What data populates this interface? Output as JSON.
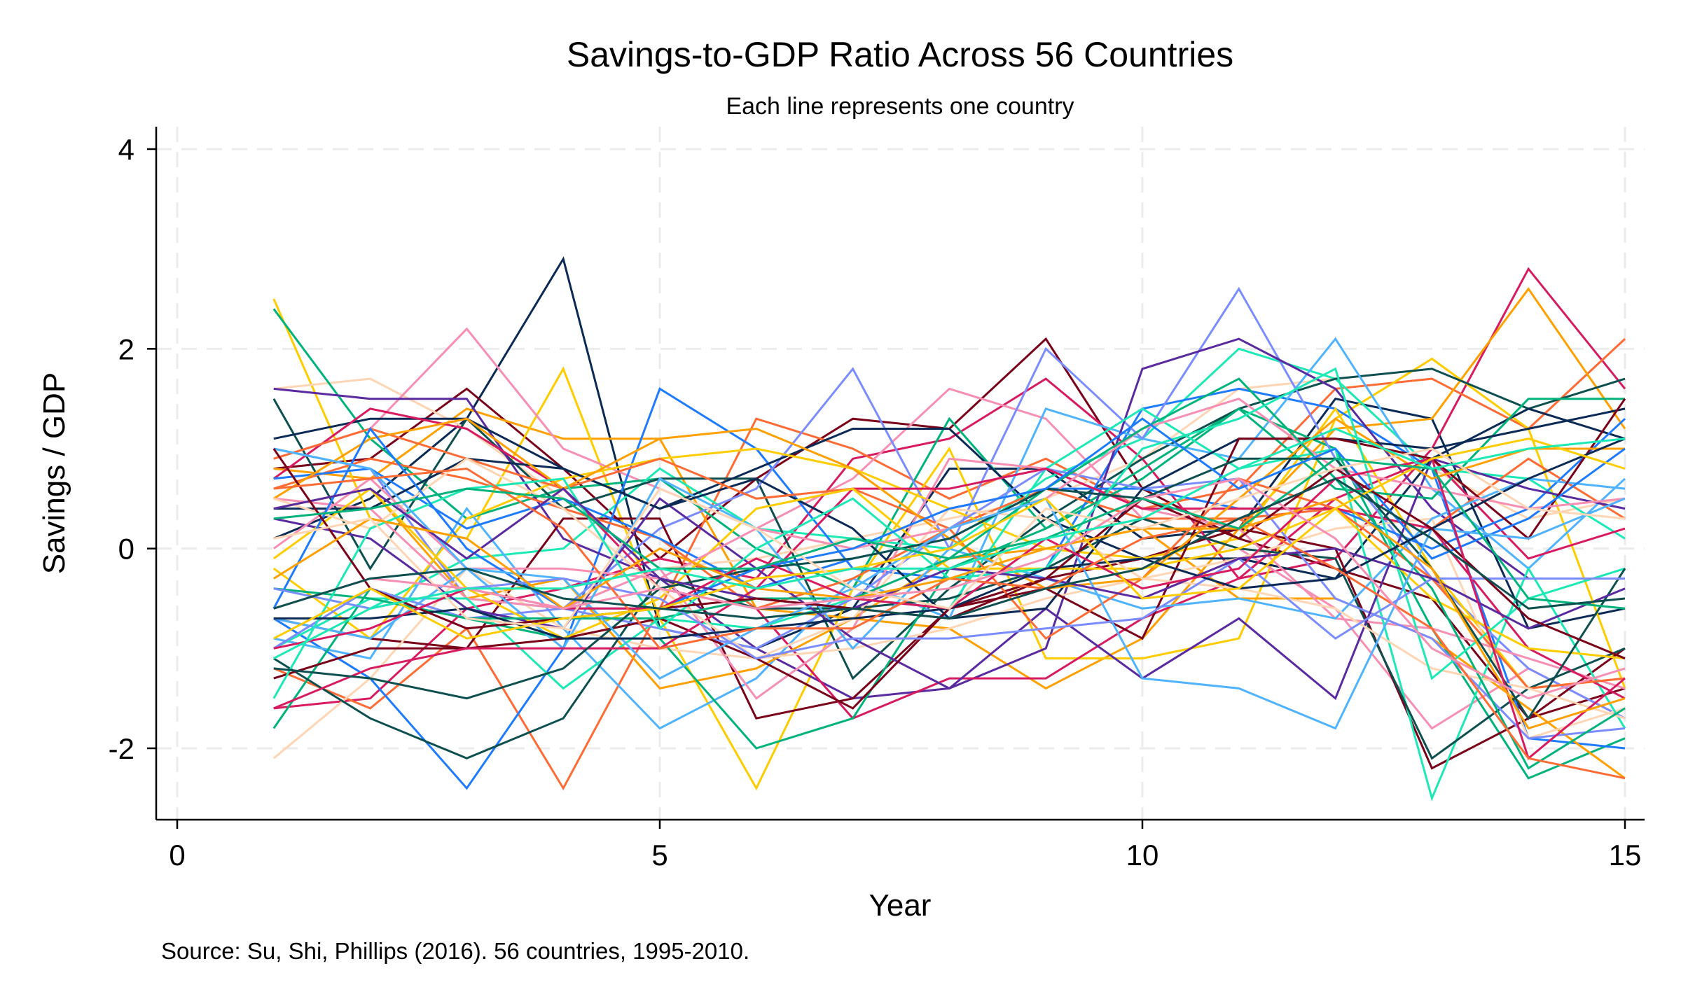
{
  "chart_data": {
    "type": "line",
    "title": "Savings-to-GDP Ratio Across 56 Countries",
    "subtitle": "Each line represents one country",
    "xlabel": "Year",
    "ylabel": "Savings / GDP",
    "note": "Source: Su, Shi, Phillips (2016). 56 countries, 1995-2010.",
    "xlim": [
      -0.2,
      15.2
    ],
    "ylim": [
      -2.7,
      4.2
    ],
    "xticks": [
      0,
      5,
      10,
      15
    ],
    "yticks": [
      -2,
      0,
      2,
      4
    ],
    "grid": true,
    "legend": "none",
    "x": [
      1,
      2,
      3,
      4,
      5,
      6,
      7,
      8,
      9,
      10,
      11,
      12,
      13,
      14,
      15
    ],
    "colors": [
      "#0b2a55",
      "#7a0019",
      "#d81b60",
      "#ff6b35",
      "#ffa000",
      "#ffcc00",
      "#ffd6b5",
      "#f78fb3",
      "#00b37a",
      "#1de9b6",
      "#0e4f4f",
      "#1e7bff",
      "#4fb3ff",
      "#7b8cff",
      "#5a2aa0"
    ],
    "series": [
      {
        "values": [
          0.1,
          0.5,
          1.3,
          2.9,
          -0.8,
          -1.0,
          -0.6,
          0.8,
          0.8,
          0.1,
          0.2,
          1.5,
          1.3,
          -0.8,
          -0.6
        ]
      },
      {
        "values": [
          0.8,
          0.9,
          1.6,
          0.8,
          -0.1,
          0.7,
          1.3,
          1.2,
          2.1,
          0.6,
          0.1,
          -0.2,
          -0.5,
          -1.7,
          -1.4
        ]
      },
      {
        "values": [
          -1.6,
          -1.5,
          -0.6,
          -0.4,
          -0.1,
          -0.3,
          0.9,
          1.1,
          1.7,
          0.9,
          -0.3,
          -0.1,
          1.0,
          2.8,
          1.6
        ]
      },
      {
        "values": [
          -1.2,
          -1.6,
          -0.8,
          -2.4,
          -0.6,
          1.3,
          1.0,
          0.5,
          0.9,
          0.4,
          0.6,
          1.6,
          1.7,
          1.2,
          2.1
        ]
      },
      {
        "values": [
          0.8,
          0.7,
          1.4,
          1.1,
          1.1,
          -0.6,
          -0.7,
          -0.8,
          -1.4,
          -0.9,
          0.2,
          1.2,
          1.3,
          2.6,
          1.2
        ]
      },
      {
        "values": [
          2.5,
          0.3,
          0.1,
          1.8,
          -0.7,
          -2.4,
          -0.4,
          1.0,
          -1.1,
          -1.1,
          -0.9,
          1.3,
          1.9,
          1.2,
          -1.4
        ]
      },
      {
        "values": [
          1.6,
          1.7,
          1.2,
          0.5,
          -0.2,
          -0.1,
          0.1,
          0.3,
          0.5,
          0.9,
          1.6,
          1.7,
          0.8,
          0.3,
          0.5
        ]
      },
      {
        "values": [
          0.9,
          1.2,
          2.2,
          1.0,
          0.6,
          0.2,
          0.7,
          1.6,
          1.3,
          0.3,
          0.0,
          -0.6,
          -1.8,
          -1.2,
          -1.7
        ]
      },
      {
        "values": [
          2.4,
          1.1,
          0.3,
          0.6,
          0.7,
          0.0,
          -0.4,
          1.3,
          0.2,
          0.8,
          1.4,
          1.0,
          -0.8,
          -2.3,
          -1.9
        ]
      },
      {
        "values": [
          -0.4,
          -0.6,
          -0.1,
          0.0,
          0.8,
          0.2,
          0.1,
          0.0,
          0.7,
          1.1,
          2.0,
          1.7,
          0.8,
          0.7,
          0.1
        ]
      },
      {
        "values": [
          1.5,
          -0.2,
          1.3,
          0.4,
          0.7,
          0.7,
          -1.3,
          -0.4,
          0.3,
          0.9,
          1.4,
          1.7,
          1.8,
          1.4,
          1.7
        ]
      },
      {
        "values": [
          -0.7,
          -1.3,
          -2.4,
          -1.0,
          1.6,
          1.0,
          -0.2,
          -0.3,
          -0.2,
          1.4,
          1.6,
          1.4,
          0.8,
          -1.9,
          -2.0
        ]
      },
      {
        "values": [
          -0.9,
          -1.1,
          0.4,
          -0.8,
          -1.8,
          -1.3,
          -0.3,
          -0.7,
          1.4,
          1.1,
          0.9,
          2.1,
          0.6,
          -0.2,
          0.7
        ]
      },
      {
        "values": [
          1.0,
          0.8,
          -0.5,
          -0.6,
          0.2,
          0.6,
          1.8,
          0.0,
          2.0,
          1.1,
          2.6,
          0.9,
          -0.3,
          -1.2,
          -1.7
        ]
      },
      {
        "values": [
          1.6,
          1.5,
          1.5,
          0.1,
          -0.3,
          -1.0,
          -1.5,
          -1.4,
          -1.0,
          1.8,
          2.1,
          1.6,
          0.4,
          -0.3,
          -0.3
        ]
      },
      {
        "values": [
          1.1,
          1.3,
          1.3,
          0.8,
          0.4,
          0.8,
          1.2,
          1.2,
          0.3,
          -0.1,
          -0.1,
          -0.3,
          0.9,
          1.4,
          1.1
        ]
      },
      {
        "values": [
          -0.7,
          -0.9,
          -1.0,
          0.3,
          0.3,
          -1.7,
          -1.5,
          -0.6,
          -0.3,
          -0.1,
          0.2,
          0.0,
          -2.2,
          -1.7,
          -1.0
        ]
      },
      {
        "values": [
          0.7,
          1.4,
          1.2,
          0.6,
          -0.4,
          -0.6,
          -1.7,
          -1.3,
          -1.3,
          -0.7,
          -0.3,
          0.5,
          0.9,
          -0.1,
          0.2
        ]
      },
      {
        "values": [
          0.6,
          0.9,
          0.7,
          0.4,
          0.1,
          -0.6,
          -0.3,
          0.2,
          0.6,
          0.3,
          0.3,
          0.4,
          0.2,
          0.9,
          0.3
        ]
      },
      {
        "values": [
          0.4,
          0.6,
          -0.5,
          -0.3,
          -1.4,
          -1.2,
          -0.7,
          -0.1,
          0.0,
          0.2,
          -0.5,
          -0.5,
          -0.9,
          -1.6,
          -2.3
        ]
      },
      {
        "values": [
          -0.2,
          -0.9,
          0.3,
          0.7,
          0.9,
          1.0,
          0.8,
          0.4,
          0.0,
          -0.1,
          0.1,
          1.4,
          -0.2,
          -1.4,
          -1.3
        ]
      },
      {
        "values": [
          -2.1,
          -1.3,
          -0.2,
          -0.8,
          -1.0,
          -1.1,
          -1.0,
          -0.8,
          -0.5,
          -0.3,
          -0.1,
          0.2,
          0.3,
          -1.9,
          -1.6
        ]
      },
      {
        "values": [
          0.5,
          0.4,
          -0.5,
          -0.6,
          -0.2,
          -1.5,
          -0.8,
          0.9,
          0.8,
          0.4,
          0.2,
          -0.7,
          -0.8,
          -1.1,
          -1.4
        ]
      },
      {
        "values": [
          -1.8,
          -0.4,
          -0.7,
          -0.9,
          -0.9,
          -2.0,
          -1.7,
          -0.2,
          0.2,
          0.7,
          1.4,
          0.6,
          0.5,
          1.5,
          1.5
        ]
      },
      {
        "values": [
          -1.0,
          -0.5,
          -0.5,
          -1.4,
          -0.7,
          -0.8,
          -0.5,
          -0.6,
          0.8,
          1.4,
          0.8,
          1.0,
          -2.5,
          -0.2,
          -1.8
        ]
      },
      {
        "values": [
          -1.1,
          -1.7,
          -2.1,
          -1.7,
          -0.3,
          -0.6,
          -0.6,
          -0.5,
          -0.2,
          0.3,
          0.0,
          -0.1,
          -2.1,
          -1.4,
          -1.0
        ]
      },
      {
        "values": [
          0.7,
          0.8,
          0.2,
          0.5,
          0.1,
          -0.4,
          -0.1,
          0.1,
          0.6,
          0.6,
          0.4,
          0.4,
          0.0,
          0.4,
          1.3
        ]
      },
      {
        "values": [
          -0.7,
          -0.9,
          -0.2,
          -1.0,
          0.7,
          0.2,
          -1.0,
          0.0,
          -0.3,
          -0.6,
          -0.5,
          -0.7,
          0.3,
          0.7,
          0.6
        ]
      },
      {
        "values": [
          -1.0,
          -0.4,
          -0.7,
          -0.6,
          -0.8,
          -1.0,
          -0.5,
          0.2,
          0.8,
          0.6,
          0.7,
          -0.5,
          -0.9,
          -1.9,
          -1.8
        ]
      },
      {
        "values": [
          0.3,
          0.1,
          -0.6,
          -0.8,
          0.5,
          -0.2,
          -0.9,
          -1.4,
          -0.6,
          -1.3,
          -0.7,
          -1.5,
          0.9,
          0.6,
          0.4
        ]
      },
      {
        "values": [
          0.4,
          0.4,
          0.9,
          0.8,
          0.4,
          0.7,
          0.2,
          -0.7,
          -0.6,
          0.6,
          1.1,
          1.1,
          1.0,
          1.2,
          1.4
        ]
      },
      {
        "values": [
          -1.3,
          -1.0,
          -1.0,
          -0.9,
          -0.7,
          -1.1,
          -1.6,
          -0.6,
          -0.4,
          -0.9,
          1.1,
          1.1,
          0.9,
          0.1,
          1.5
        ]
      },
      {
        "values": [
          -1.6,
          -1.2,
          -1.0,
          -1.0,
          -1.0,
          -0.4,
          0.6,
          0.6,
          0.8,
          0.4,
          0.4,
          0.4,
          0.2,
          -1.0,
          -1.5
        ]
      },
      {
        "values": [
          0.9,
          1.2,
          0.9,
          0.6,
          0.9,
          0.5,
          0.6,
          0.2,
          -0.9,
          -0.3,
          0.7,
          0.4,
          -0.3,
          -1.4,
          -1.3
        ]
      },
      {
        "values": [
          0.5,
          1.1,
          1.3,
          0.6,
          1.1,
          1.2,
          0.8,
          0.1,
          -0.4,
          -0.3,
          0.5,
          1.3,
          0.7,
          1.0,
          1.0
        ]
      },
      {
        "values": [
          -0.1,
          0.6,
          -0.4,
          -0.9,
          -0.5,
          0.4,
          0.6,
          -0.2,
          -0.2,
          -0.2,
          0.0,
          0.4,
          -0.5,
          -1.0,
          -1.1
        ]
      },
      {
        "values": [
          0.5,
          0.2,
          0.9,
          0.4,
          -0.4,
          -1.1,
          -0.7,
          0.4,
          0.3,
          -0.3,
          -0.4,
          -0.6,
          -1.2,
          -1.4,
          -1.7
        ]
      },
      {
        "values": [
          0.0,
          0.7,
          -0.2,
          -0.2,
          -0.3,
          0.2,
          0.0,
          0.2,
          0.5,
          1.2,
          1.5,
          0.8,
          0.6,
          0.4,
          0.5
        ]
      },
      {
        "values": [
          -0.4,
          -0.5,
          -0.7,
          -0.7,
          -0.7,
          -0.5,
          -0.5,
          -0.1,
          0.6,
          1.2,
          1.7,
          0.7,
          -0.4,
          -2.2,
          -1.6
        ]
      },
      {
        "values": [
          -1.5,
          0.2,
          0.6,
          0.7,
          -0.8,
          0.0,
          0.5,
          -0.3,
          -0.2,
          1.0,
          1.3,
          1.8,
          -1.3,
          -0.5,
          -0.2
        ]
      },
      {
        "values": [
          -1.2,
          -1.3,
          -1.5,
          -1.2,
          -0.4,
          -0.2,
          -0.1,
          0.1,
          0.6,
          0.5,
          0.9,
          0.9,
          -0.2,
          -1.7,
          -0.2
        ]
      },
      {
        "values": [
          -0.6,
          1.2,
          0.0,
          -0.6,
          -0.6,
          -0.2,
          0.0,
          0.4,
          0.6,
          1.3,
          0.6,
          1.0,
          -0.1,
          0.3,
          1.0
        ]
      },
      {
        "values": [
          1.0,
          0.8,
          -0.2,
          -0.3,
          -1.3,
          -0.8,
          -0.4,
          0.2,
          0.5,
          -1.3,
          -1.4,
          -1.8,
          0.2,
          0.1,
          0.5
        ]
      },
      {
        "values": [
          -0.4,
          -0.6,
          -0.4,
          -0.3,
          -0.5,
          -1.1,
          -0.9,
          -0.9,
          -0.8,
          -0.7,
          -0.1,
          -0.9,
          -0.3,
          -0.3,
          -0.3
        ]
      },
      {
        "values": [
          0.4,
          0.6,
          -0.1,
          0.6,
          -0.3,
          -0.5,
          -0.6,
          -0.2,
          -0.3,
          -0.5,
          -0.1,
          0.0,
          -0.3,
          -0.8,
          -0.4
        ]
      },
      {
        "values": [
          -0.7,
          -0.7,
          -0.6,
          -0.9,
          -0.9,
          -0.8,
          -0.7,
          -0.6,
          -0.2,
          -0.1,
          -0.4,
          -0.3,
          0.2,
          0.7,
          1.1
        ]
      },
      {
        "values": [
          1.0,
          -0.4,
          -0.8,
          -0.7,
          -0.6,
          -0.5,
          -0.6,
          -0.7,
          -0.3,
          0.5,
          0.1,
          0.8,
          0.2,
          -0.7,
          -1.1
        ]
      },
      {
        "values": [
          -1.0,
          -0.8,
          -0.4,
          -0.6,
          -0.6,
          -0.1,
          -0.5,
          -0.6,
          0.1,
          -0.4,
          -0.2,
          0.7,
          0.9,
          -2.1,
          -1.3
        ]
      },
      {
        "values": [
          0.6,
          0.7,
          0.8,
          0.2,
          -1.0,
          -0.8,
          -0.8,
          -0.3,
          -0.4,
          0.1,
          0.3,
          -0.2,
          -0.8,
          -2.1,
          -2.3
        ]
      },
      {
        "values": [
          -0.3,
          0.3,
          0.1,
          -0.6,
          0.0,
          -0.4,
          -0.5,
          -0.3,
          0.0,
          0.2,
          0.2,
          0.5,
          -0.2,
          -1.8,
          -1.5
        ]
      },
      {
        "values": [
          -0.9,
          -0.4,
          -0.9,
          -0.7,
          -0.6,
          -0.3,
          -0.2,
          0.0,
          0.5,
          -0.5,
          -0.4,
          0.4,
          0.9,
          1.1,
          0.8
        ]
      },
      {
        "values": [
          0.1,
          0.3,
          -0.7,
          -0.8,
          0.6,
          0.2,
          -0.4,
          -0.6,
          0.4,
          0.2,
          0.5,
          0.8,
          1.0,
          0.4,
          0.3
        ]
      },
      {
        "values": [
          -0.6,
          -0.3,
          -0.4,
          -0.6,
          -0.4,
          -0.6,
          -0.5,
          -0.4,
          -0.1,
          0.5,
          0.7,
          0.1,
          -1.0,
          -1.5,
          -1.2
        ]
      },
      {
        "values": [
          0.3,
          0.4,
          0.6,
          0.5,
          -0.2,
          -0.2,
          0.1,
          -0.1,
          0.1,
          0.5,
          0.2,
          0.9,
          0.8,
          -0.5,
          -0.6
        ]
      },
      {
        "values": [
          -1.1,
          -0.6,
          -0.4,
          -0.4,
          -0.2,
          -0.4,
          -0.2,
          -0.2,
          0.1,
          0.3,
          0.8,
          1.2,
          0.8,
          1.0,
          1.1
        ]
      },
      {
        "values": [
          -0.6,
          -0.3,
          -0.2,
          -0.5,
          -0.6,
          -0.7,
          -0.6,
          -0.7,
          -0.4,
          -0.2,
          0.3,
          0.7,
          0.1,
          -0.6,
          -0.5
        ]
      }
    ]
  }
}
